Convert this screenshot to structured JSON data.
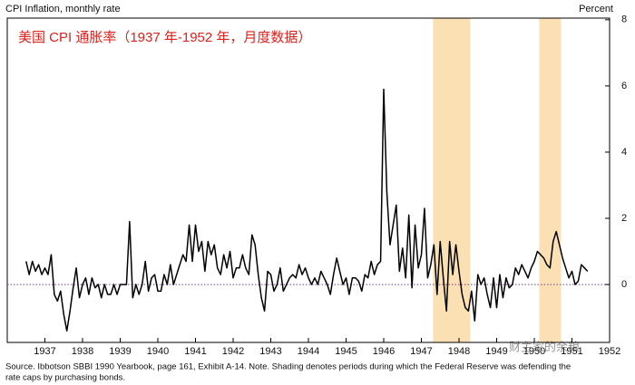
{
  "chart_data": {
    "type": "line",
    "title": "CPI Inflation, monthly rate",
    "subtitle": "美国 CPI 通胀率（1937 年-1952 年，月度数据）",
    "y_axis_label": "Percent",
    "source": [
      "Source.  Ibbotson SBBI 1990 Yearbook, page 161, Exhibit A-14. Note. Shading denotes periods during which the Federal Reserve was defending the",
      "rate caps by purchasing bonds."
    ],
    "watermark": "财主家的余粮",
    "x": [
      1937,
      1937.083,
      1937.167,
      1937.25,
      1937.333,
      1937.417,
      1937.5,
      1937.583,
      1937.667,
      1937.75,
      1937.833,
      1937.917,
      1938,
      1938.083,
      1938.167,
      1938.25,
      1938.333,
      1938.417,
      1938.5,
      1938.583,
      1938.667,
      1938.75,
      1938.833,
      1938.917,
      1939,
      1939.083,
      1939.167,
      1939.25,
      1939.333,
      1939.417,
      1939.5,
      1939.583,
      1939.667,
      1939.75,
      1939.833,
      1939.917,
      1940,
      1940.083,
      1940.167,
      1940.25,
      1940.333,
      1940.417,
      1940.5,
      1940.583,
      1940.667,
      1940.75,
      1940.833,
      1940.917,
      1941,
      1941.083,
      1941.167,
      1941.25,
      1941.333,
      1941.417,
      1941.5,
      1941.583,
      1941.667,
      1941.75,
      1941.833,
      1941.917,
      1942,
      1942.083,
      1942.167,
      1942.25,
      1942.333,
      1942.417,
      1942.5,
      1942.583,
      1942.667,
      1942.75,
      1942.833,
      1942.917,
      1943,
      1943.083,
      1943.167,
      1943.25,
      1943.333,
      1943.417,
      1943.5,
      1943.583,
      1943.667,
      1943.75,
      1943.833,
      1943.917,
      1944,
      1944.083,
      1944.167,
      1944.25,
      1944.333,
      1944.417,
      1944.5,
      1944.583,
      1944.667,
      1944.75,
      1944.833,
      1944.917,
      1945,
      1945.083,
      1945.167,
      1945.25,
      1945.333,
      1945.417,
      1945.5,
      1945.583,
      1945.667,
      1945.75,
      1945.833,
      1945.917,
      1946,
      1946.083,
      1946.167,
      1946.25,
      1946.333,
      1946.417,
      1946.5,
      1946.583,
      1946.667,
      1946.75,
      1946.833,
      1946.917,
      1947,
      1947.083,
      1947.167,
      1947.25,
      1947.333,
      1947.417,
      1947.5,
      1947.583,
      1947.667,
      1947.75,
      1947.833,
      1947.917,
      1948,
      1948.083,
      1948.167,
      1948.25,
      1948.333,
      1948.417,
      1948.5,
      1948.583,
      1948.667,
      1948.75,
      1948.833,
      1948.917,
      1949,
      1949.083,
      1949.167,
      1949.25,
      1949.333,
      1949.417,
      1949.5,
      1949.583,
      1949.667,
      1949.75,
      1949.833,
      1949.917,
      1950,
      1950.083,
      1950.167,
      1950.25,
      1950.333,
      1950.417,
      1950.5,
      1950.583,
      1950.667,
      1950.75,
      1950.833,
      1950.917,
      1951,
      1951.083,
      1951.167,
      1951.25,
      1951.333,
      1951.417,
      1951.5,
      1951.583,
      1951.667,
      1951.75,
      1951.833,
      1951.917
    ],
    "series": [
      {
        "name": "CPI Inflation",
        "color": "#000000",
        "values": [
          0.7,
          0.3,
          0.7,
          0.4,
          0.6,
          0.3,
          0.5,
          0.3,
          0.9,
          -0.3,
          -0.5,
          -0.2,
          -0.9,
          -1.4,
          -0.8,
          -0.1,
          0.5,
          -0.4,
          0.0,
          0.2,
          -0.3,
          0.2,
          -0.1,
          0.0,
          -0.4,
          0.0,
          -0.3,
          -0.3,
          0.0,
          -0.3,
          0.0,
          0.0,
          0.0,
          1.9,
          -0.4,
          0.0,
          -0.3,
          0.0,
          0.7,
          -0.2,
          0.2,
          0.3,
          -0.2,
          -0.2,
          0.3,
          0.0,
          0.6,
          0.0,
          0.3,
          0.6,
          0.9,
          0.7,
          1.8,
          0.7,
          1.8,
          1.0,
          1.3,
          0.4,
          1.3,
          0.9,
          1.2,
          0.5,
          0.3,
          0.9,
          0.5,
          1.0,
          0.2,
          0.5,
          0.5,
          0.9,
          0.5,
          0.3,
          1.5,
          1.2,
          0.3,
          -0.4,
          -0.8,
          0.4,
          0.3,
          -0.2,
          0.0,
          0.5,
          -0.2,
          0.0,
          0.2,
          0.3,
          0.2,
          0.6,
          0.3,
          0.5,
          0.2,
          0.0,
          0.2,
          0.0,
          0.4,
          0.2,
          0.0,
          -0.3,
          0.3,
          0.8,
          0.4,
          0.0,
          0.2,
          -0.3,
          0.2,
          0.2,
          0.1,
          -0.2,
          0.3,
          0.2,
          0.7,
          0.3,
          0.6,
          0.7,
          5.9,
          2.8,
          1.2,
          1.8,
          2.4,
          0.4,
          1.1,
          0.2,
          2.1,
          -0.1,
          1.8,
          0.5,
          0.9,
          2.3,
          0.2,
          0.6,
          1.2,
          -0.3,
          1.3,
          0.2,
          -0.8,
          1.3,
          0.3,
          1.2,
          0.4,
          -0.3,
          -0.7,
          -0.8,
          -0.2,
          -1.1,
          0.3,
          0.0,
          0.2,
          -0.3,
          -0.7,
          0.2,
          -0.7,
          0.3,
          -0.4,
          0.2,
          -0.1,
          0.0,
          0.5,
          0.3,
          0.6,
          0.4,
          0.2,
          0.5,
          0.7,
          1.0,
          0.9,
          0.8,
          0.6,
          0.5,
          1.3,
          1.6,
          1.2,
          0.8,
          0.5,
          0.2,
          0.4,
          0.0,
          0.1,
          0.6,
          0.5,
          0.4
        ]
      }
    ],
    "shading": [
      {
        "start": 1947.81,
        "end": 1948.8
      },
      {
        "start": 1950.63,
        "end": 1951.21
      }
    ],
    "shading_color": "#fbe0b4",
    "xlim": [
      1936.5,
      1952.5
    ],
    "xticks": [
      {
        "value": 1937.5,
        "label": "1937"
      },
      {
        "value": 1938.5,
        "label": "1938"
      },
      {
        "value": 1939.5,
        "label": "1939"
      },
      {
        "value": 1940.5,
        "label": "1940"
      },
      {
        "value": 1941.5,
        "label": "1941"
      },
      {
        "value": 1942.5,
        "label": "1942"
      },
      {
        "value": 1943.5,
        "label": "1943"
      },
      {
        "value": 1944.5,
        "label": "1944"
      },
      {
        "value": 1945.5,
        "label": "1945"
      },
      {
        "value": 1946.5,
        "label": "1946"
      },
      {
        "value": 1947.5,
        "label": "1947"
      },
      {
        "value": 1948.5,
        "label": "1948"
      },
      {
        "value": 1949.5,
        "label": "1949"
      },
      {
        "value": 1950.5,
        "label": "1950"
      },
      {
        "value": 1951.5,
        "label": "1951"
      },
      {
        "value": 1952.5,
        "label": "1952"
      }
    ],
    "ylim": [
      -1.75,
      8.05
    ],
    "yticks": [
      0,
      2,
      4,
      6,
      8
    ]
  }
}
